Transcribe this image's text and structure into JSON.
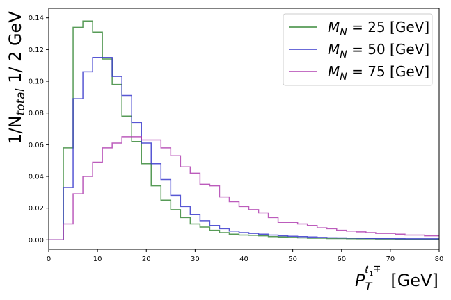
{
  "chart_data": {
    "type": "line",
    "step": true,
    "xlabel": "P_T^{ℓ1∓} [GeV]",
    "ylabel": "1/N_total 1/ 2 GeV",
    "xlim": [
      0,
      80
    ],
    "ylim": [
      -0.006,
      0.146
    ],
    "xticks": [
      0,
      10,
      20,
      30,
      40,
      50,
      60,
      70,
      80
    ],
    "yticks": [
      0.0,
      0.02,
      0.04,
      0.06,
      0.08,
      0.1,
      0.12,
      0.14
    ],
    "ytick_labels": [
      "0.00",
      "0.02",
      "0.04",
      "0.06",
      "0.08",
      "0.10",
      "0.12",
      "0.14"
    ],
    "grid": false,
    "legend_position": "top-right",
    "bin_edges": [
      0,
      1,
      3,
      5,
      7,
      9,
      11,
      13,
      15,
      17,
      19,
      21,
      23,
      25,
      27,
      29,
      31,
      33,
      35,
      37,
      39,
      41,
      43,
      45,
      47,
      49,
      51,
      53,
      55,
      57,
      59,
      61,
      63,
      65,
      67,
      69,
      71,
      73,
      75,
      77,
      79,
      80
    ],
    "series": [
      {
        "name": "M_N = 25 [GeV]",
        "label_base": "M",
        "label_sub": "N",
        "label_rest": " = 25 [GeV]",
        "color": "#3a8a3a",
        "values": [
          0,
          0,
          0.058,
          0.134,
          0.138,
          0.131,
          0.114,
          0.098,
          0.078,
          0.062,
          0.048,
          0.034,
          0.025,
          0.019,
          0.014,
          0.01,
          0.008,
          0.006,
          0.0045,
          0.0035,
          0.003,
          0.0028,
          0.0025,
          0.002,
          0.0018,
          0.0015,
          0.0012,
          0.001,
          0.001,
          0.0008,
          0.0008,
          0.0007,
          0.0006,
          0.0006,
          0.0005,
          0.0005,
          0.0004,
          0.0004,
          0.0004,
          0.0004,
          0.0004
        ]
      },
      {
        "name": "M_N = 50 [GeV]",
        "label_base": "M",
        "label_sub": "N",
        "label_rest": " = 50 [GeV]",
        "color": "#3a3acc",
        "values": [
          0,
          0,
          0.033,
          0.089,
          0.106,
          0.115,
          0.115,
          0.103,
          0.091,
          0.074,
          0.061,
          0.048,
          0.038,
          0.028,
          0.021,
          0.016,
          0.012,
          0.009,
          0.007,
          0.0055,
          0.0045,
          0.004,
          0.0035,
          0.003,
          0.0025,
          0.0022,
          0.002,
          0.0018,
          0.0015,
          0.0013,
          0.0012,
          0.0011,
          0.001,
          0.0009,
          0.0008,
          0.0008,
          0.0007,
          0.0006,
          0.0006,
          0.0006,
          0.0006
        ]
      },
      {
        "name": "M_N = 75 [GeV]",
        "label_base": "M",
        "label_sub": "N",
        "label_rest": " = 75 [GeV]",
        "color": "#b040b0",
        "values": [
          0,
          0,
          0.01,
          0.029,
          0.04,
          0.049,
          0.058,
          0.061,
          0.065,
          0.065,
          0.063,
          0.063,
          0.058,
          0.053,
          0.046,
          0.042,
          0.035,
          0.034,
          0.027,
          0.024,
          0.021,
          0.019,
          0.017,
          0.014,
          0.011,
          0.011,
          0.01,
          0.009,
          0.0075,
          0.007,
          0.006,
          0.0055,
          0.005,
          0.0045,
          0.004,
          0.004,
          0.0035,
          0.003,
          0.003,
          0.0025,
          0.0025
        ]
      }
    ]
  }
}
